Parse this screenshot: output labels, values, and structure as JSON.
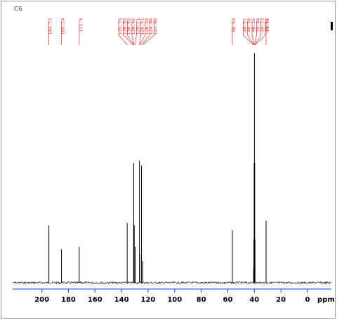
{
  "chart_data": {
    "type": "stem",
    "title": "C6",
    "x_label": "ppm",
    "x": [
      194.73,
      185.24,
      171.9,
      135.75,
      130.93,
      130.82,
      130.42,
      129.71,
      126.51,
      126.33,
      124.96,
      123.95,
      56.53,
      40.57,
      40.36,
      40.15,
      39.94,
      39.73,
      39.52,
      31.16
    ],
    "values": [
      24,
      14,
      15,
      25,
      25,
      50,
      24,
      15,
      51,
      12,
      49,
      9,
      22,
      6,
      18,
      50,
      96,
      50,
      18,
      26
    ],
    "color": "#000000",
    "label_color": "#e03030",
    "axis_color": "#1a3fd6",
    "xlim": [
      222,
      -18
    ],
    "ylim": [
      0,
      100
    ],
    "xticks": [
      200,
      180,
      160,
      140,
      120,
      100,
      80,
      60,
      40,
      20,
      0
    ]
  }
}
